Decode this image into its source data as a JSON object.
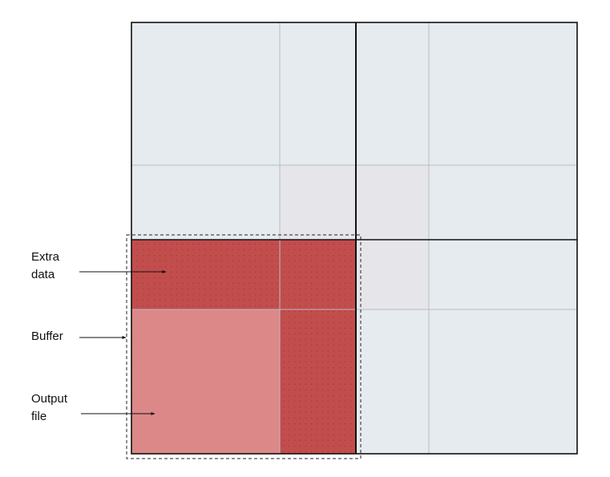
{
  "labels": {
    "extra_data": {
      "line1": "Extra",
      "line2": "data"
    },
    "buffer": "Buffer",
    "output_file": {
      "line1": "Output",
      "line2": "file"
    }
  },
  "colors": {
    "grid_fill": "#e6ebef",
    "grid_fill_overlap": "#e6e6ea",
    "extra_data_fill": "#c24d4d",
    "output_file_fill": "#dc8888",
    "grid_line_thin": "#b8bcc0",
    "grid_line_thick": "#111111",
    "text": "#111111"
  }
}
